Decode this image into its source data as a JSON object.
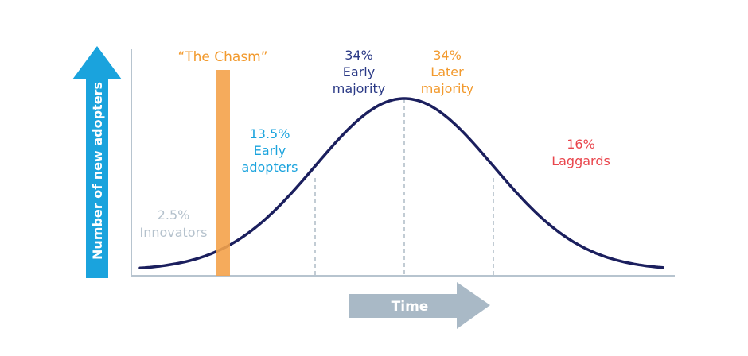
{
  "colors": {
    "y_arrow": "#1AA3DD",
    "time_arrow": "#A9B9C6",
    "curve": "#1B1F5E",
    "axis": "#B7C4CF",
    "divider": "#A9B6C2",
    "chasm": "#F4A24A",
    "innovators": "#B4C1CC",
    "early_adopters": "#1AA3DD",
    "early_majority": "#2B3A86",
    "late_majority": "#F29A2E",
    "laggards": "#E9454C"
  },
  "y_axis_label": "Number of new adopters",
  "x_axis_label": "Time",
  "chasm": {
    "label": "“The Chasm”"
  },
  "segments": {
    "innovators": {
      "percent": "2.5%",
      "name": "Innovators"
    },
    "early_adopters": {
      "percent": "13.5%",
      "name_line1": "Early",
      "name_line2": "adopters"
    },
    "early_majority": {
      "percent": "34%",
      "name_line1": "Early",
      "name_line2": "majority"
    },
    "late_majority": {
      "percent": "34%",
      "name_line1": "Later",
      "name_line2": "majority"
    },
    "laggards": {
      "percent": "16%",
      "name": "Laggards"
    }
  }
}
